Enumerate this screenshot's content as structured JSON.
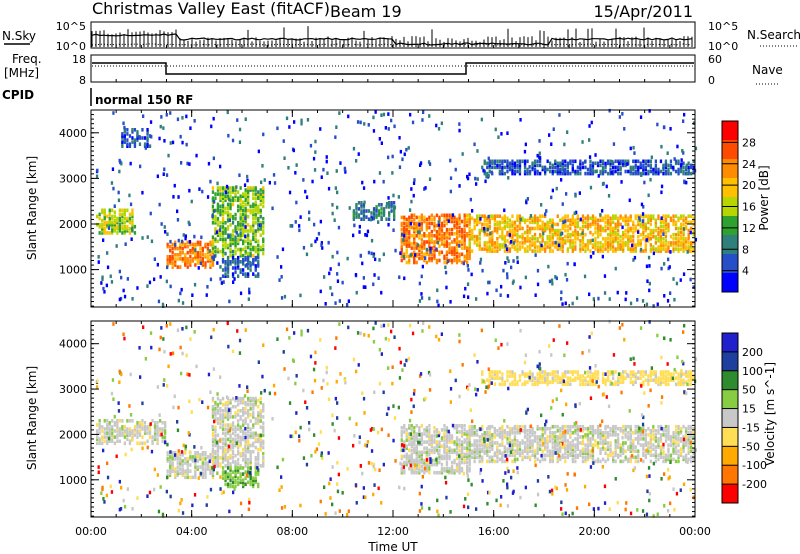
{
  "header": {
    "title": "Christmas Valley East (fitACF)",
    "beam": "Beam 19",
    "date": "15/Apr/2011"
  },
  "top_panel": {
    "nsky_label": "N.Sky",
    "nsearch_label": "N.Search",
    "left_ticks": [
      "10^5",
      "10^0"
    ],
    "right_ticks": [
      "10^5",
      "10^0"
    ]
  },
  "freq_panel": {
    "freq_label_1": "Freq.",
    "freq_label_2": "[MHz]",
    "nave_label": "Nave",
    "left_ticks": [
      "18",
      "8"
    ],
    "right_ticks": [
      "60",
      "0"
    ]
  },
  "cpid": {
    "label": "CPID",
    "mode_text": "normal 150 RF"
  },
  "colors": {
    "power": [
      "#0000ff",
      "#264ec8",
      "#2f7f7a",
      "#2fa12f",
      "#b7d500",
      "#ffc000",
      "#ff8c00",
      "#ff4b00",
      "#ff0000"
    ],
    "velocity": [
      "#ff0000",
      "#ff7700",
      "#ffaa00",
      "#ffdd55",
      "#c8c8c8",
      "#88cc44",
      "#2e8b2e",
      "#1e3f9e",
      "#2020cc"
    ]
  },
  "chart_data": [
    {
      "type": "heatmap",
      "quantity": "Power",
      "ylabel": "Slant Range [km]",
      "xlim": [
        0,
        24
      ],
      "ylim": [
        180,
        4500
      ],
      "yticks": [
        1000,
        2000,
        3000,
        4000
      ],
      "colorbar": {
        "label": "Power [dB]",
        "range": [
          0,
          32
        ],
        "ticks": [
          4,
          8,
          12,
          16,
          20,
          24,
          28
        ]
      },
      "bands": [
        {
          "t_start": 0.2,
          "t_end": 1.8,
          "range_low": 1800,
          "range_high": 2300,
          "power": 16
        },
        {
          "t_start": 3.0,
          "t_end": 4.8,
          "range_low": 1050,
          "range_high": 1600,
          "power": 24
        },
        {
          "t_start": 4.8,
          "t_end": 6.8,
          "range_low": 1300,
          "range_high": 2800,
          "power": 14
        },
        {
          "t_start": 5.2,
          "t_end": 6.6,
          "range_low": 850,
          "range_high": 1300,
          "power": 6
        },
        {
          "t_start": 10.4,
          "t_end": 12.0,
          "range_low": 2100,
          "range_high": 2500,
          "power": 8
        },
        {
          "t_start": 12.3,
          "t_end": 15.0,
          "range_low": 1150,
          "range_high": 2200,
          "power": 24
        },
        {
          "t_start": 15.0,
          "t_end": 24.0,
          "range_low": 1400,
          "range_high": 2200,
          "power": 20
        },
        {
          "t_start": 15.5,
          "t_end": 24.0,
          "range_low": 3100,
          "range_high": 3400,
          "power": 6
        },
        {
          "t_start": 1.2,
          "t_end": 2.4,
          "range_low": 3700,
          "range_high": 4100,
          "power": 6
        }
      ]
    },
    {
      "type": "heatmap",
      "quantity": "Velocity",
      "ylabel": "Slant Range [km]",
      "xlabel": "Time UT",
      "xlim": [
        0,
        24
      ],
      "ylim": [
        180,
        4500
      ],
      "yticks": [
        1000,
        2000,
        3000,
        4000
      ],
      "xticks": [
        "00:00",
        "04:00",
        "08:00",
        "12:00",
        "16:00",
        "20:00",
        "00:00"
      ],
      "colorbar": {
        "label": "Velocity [m s^-1]",
        "ticks": [
          "200",
          "100",
          "50",
          "15",
          "-15",
          "-50",
          "-100",
          "-200"
        ]
      },
      "bands": [
        {
          "t_start": 0.2,
          "t_end": 3.0,
          "range_low": 1800,
          "range_high": 2300,
          "velocity": 0
        },
        {
          "t_start": 3.0,
          "t_end": 4.8,
          "range_low": 1050,
          "range_high": 1600,
          "velocity": 0
        },
        {
          "t_start": 4.8,
          "t_end": 6.8,
          "range_low": 1300,
          "range_high": 2800,
          "velocity": 0
        },
        {
          "t_start": 5.2,
          "t_end": 6.6,
          "range_low": 850,
          "range_high": 1300,
          "velocity": 40
        },
        {
          "t_start": 12.3,
          "t_end": 15.0,
          "range_low": 1150,
          "range_high": 2200,
          "velocity": 0
        },
        {
          "t_start": 15.0,
          "t_end": 24.0,
          "range_low": 1400,
          "range_high": 2200,
          "velocity": 0
        },
        {
          "t_start": 15.5,
          "t_end": 24.0,
          "range_low": 3100,
          "range_high": 3400,
          "velocity": -30
        }
      ]
    }
  ]
}
